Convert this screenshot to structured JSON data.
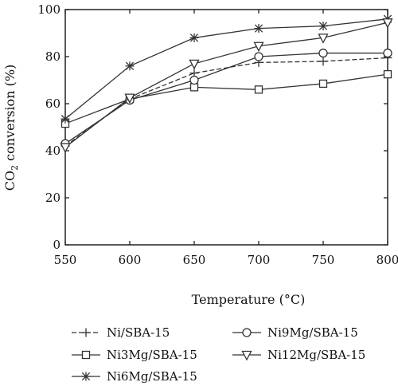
{
  "chart_data": {
    "type": "line",
    "xlabel": "Temperature (°C)",
    "ylabel_prefix": "CO",
    "ylabel_sub": "2",
    "ylabel_suffix": " conversion (%)",
    "xlim": [
      550,
      800
    ],
    "ylim": [
      0,
      100
    ],
    "xticks": [
      550,
      600,
      650,
      700,
      750,
      800
    ],
    "yticks": [
      0,
      20,
      40,
      60,
      80,
      100
    ],
    "grid": false,
    "legend_placement": "below",
    "x": [
      550,
      600,
      650,
      700,
      750,
      800
    ],
    "series": [
      {
        "name": "Ni/SBA-15",
        "marker": "plus",
        "line_style": "dashed",
        "values": [
          42,
          62,
          73,
          77.5,
          78,
          79.5
        ]
      },
      {
        "name": "Ni3Mg/SBA-15",
        "marker": "square",
        "line_style": "solid",
        "values": [
          51.5,
          62,
          67,
          66,
          68.5,
          72.5
        ]
      },
      {
        "name": "Ni6Mg/SBA-15",
        "marker": "asterisk",
        "line_style": "solid",
        "values": [
          53.5,
          76,
          88,
          92,
          93,
          96
        ]
      },
      {
        "name": "Ni9Mg/SBA-15",
        "marker": "circle",
        "line_style": "solid",
        "values": [
          43,
          61.5,
          70,
          80,
          81.5,
          81.5
        ]
      },
      {
        "name": "Ni12Mg/SBA-15",
        "marker": "triangle-down",
        "line_style": "solid",
        "values": [
          41.5,
          62.5,
          77,
          84.5,
          88,
          94.5
        ]
      }
    ],
    "colors": {
      "line": "#333333",
      "axis": "#111111",
      "marker_fill": "#ffffff"
    }
  }
}
